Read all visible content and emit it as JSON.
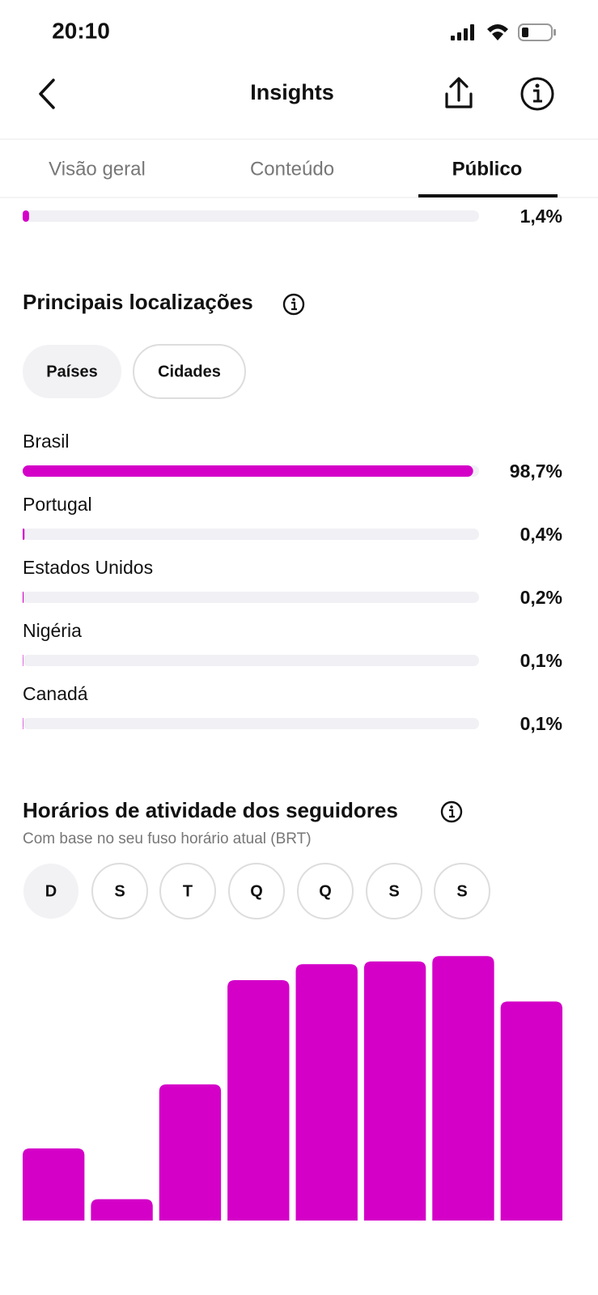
{
  "status_bar": {
    "time": "20:10"
  },
  "header": {
    "title": "Insights"
  },
  "tabs": {
    "items": [
      "Visão geral",
      "Conteúdo",
      "Público"
    ],
    "selected": 2
  },
  "previous_bar": {
    "value": 1.4,
    "label": "1,4%"
  },
  "locations": {
    "title": "Principais localizações",
    "filters": [
      "Países",
      "Cidades"
    ],
    "selected_filter": 0,
    "rows": [
      {
        "name": "Brasil",
        "value": 98.7,
        "label": "98,7%"
      },
      {
        "name": "Portugal",
        "value": 0.4,
        "label": "0,4%"
      },
      {
        "name": "Estados Unidos",
        "value": 0.2,
        "label": "0,2%"
      },
      {
        "name": "Nigéria",
        "value": 0.1,
        "label": "0,1%"
      },
      {
        "name": "Canadá",
        "value": 0.1,
        "label": "0,1%"
      }
    ]
  },
  "activity": {
    "title": "Horários de atividade dos seguidores",
    "subtitle": "Com base no seu fuso horário atual (BRT)",
    "days": [
      "D",
      "S",
      "T",
      "Q",
      "Q",
      "S",
      "S"
    ],
    "selected_day": 0
  },
  "chart_data": {
    "type": "bar",
    "categories": [
      null,
      null,
      null,
      null,
      null,
      null,
      null,
      null
    ],
    "values": [
      27,
      8,
      51,
      90,
      96,
      97,
      99,
      82
    ],
    "ylim": [
      0,
      100
    ],
    "color": "#d400c8"
  }
}
